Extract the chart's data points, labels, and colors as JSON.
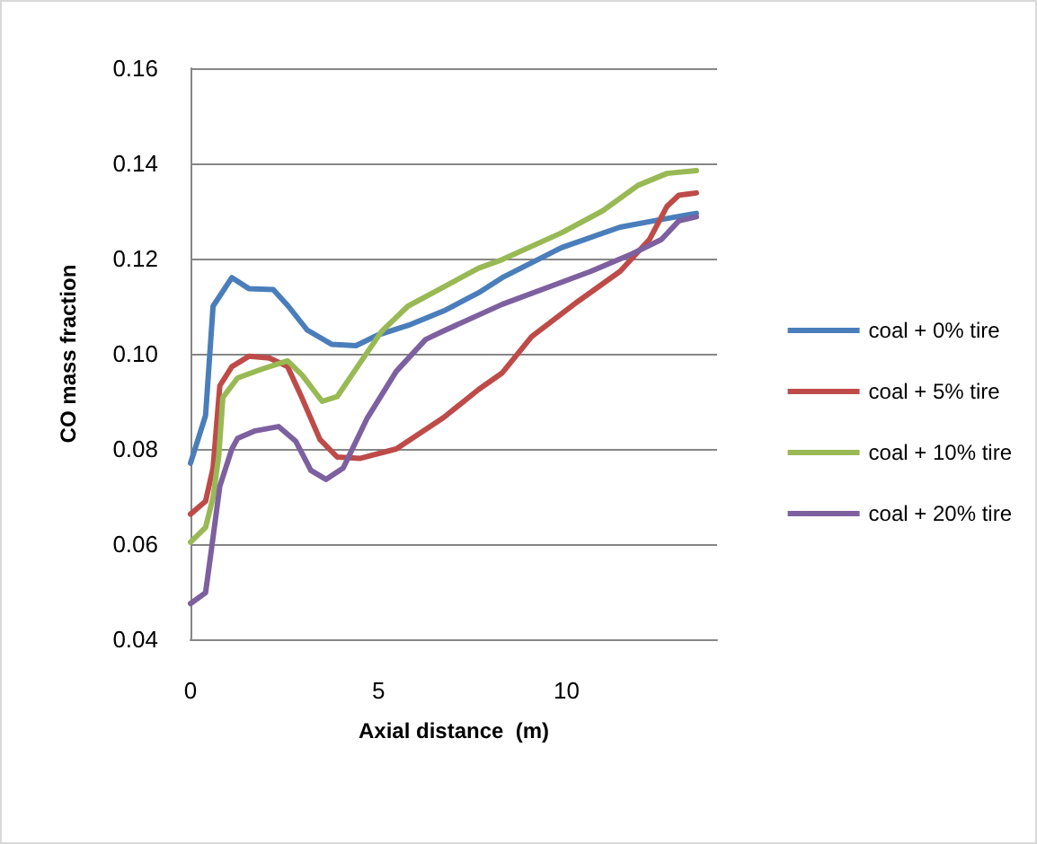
{
  "chart_data": {
    "type": "line",
    "xlabel": "Axial distance  (m)",
    "ylabel": "CO mass fraction",
    "xlim": [
      0,
      14
    ],
    "xticks": [
      0,
      5,
      10
    ],
    "ylim": [
      0.04,
      0.16
    ],
    "yticks": [
      0.04,
      0.06,
      0.08,
      {
        "value": 0.1,
        "label": "0.10"
      },
      0.12,
      0.14,
      0.16
    ],
    "grid": "y",
    "legend": "right",
    "marker": "none",
    "line_style": "solid",
    "series": [
      {
        "name": "coal + 0% tire",
        "color": "#4a7ebb",
        "x": [
          0,
          0.4,
          0.6,
          1.1,
          1.55,
          2.2,
          2.6,
          3.1,
          3.75,
          4.4,
          5,
          5.8,
          6.73,
          7.7,
          8.29,
          9.86,
          11.42,
          12.36,
          13.45
        ],
        "values": [
          0.077,
          0.087,
          0.11,
          0.116,
          0.1137,
          0.1135,
          0.11,
          0.105,
          0.102,
          0.1017,
          0.104,
          0.106,
          0.109,
          0.113,
          0.116,
          0.1223,
          0.1266,
          0.128,
          0.1295
        ]
      },
      {
        "name": "coal + 5% tire",
        "color": "#be4b48",
        "x": [
          0,
          0.4,
          0.6,
          0.78,
          1.1,
          1.56,
          2.1,
          2.58,
          2.97,
          3.44,
          3.9,
          4.5,
          5.47,
          6.73,
          7.66,
          8.29,
          9.07,
          10.3,
          11.42,
          12.2,
          12.67,
          12.98,
          13.45
        ],
        "values": [
          0.0663,
          0.069,
          0.076,
          0.0933,
          0.0973,
          0.0995,
          0.0991,
          0.0973,
          0.0906,
          0.082,
          0.0783,
          0.078,
          0.08,
          0.0866,
          0.0925,
          0.096,
          0.1036,
          0.111,
          0.1173,
          0.124,
          0.131,
          0.1333,
          0.1338
        ]
      },
      {
        "name": "coal + 10% tire",
        "color": "#98b954",
        "x": [
          0,
          0.4,
          0.6,
          0.75,
          0.86,
          1.25,
          1.87,
          2.58,
          2.97,
          3.5,
          3.9,
          4.5,
          5.08,
          5.78,
          6.72,
          7.66,
          8.29,
          9.86,
          10.95,
          11.9,
          12.67,
          13.45
        ],
        "values": [
          0.0604,
          0.0635,
          0.0698,
          0.0785,
          0.0908,
          0.0949,
          0.0967,
          0.0985,
          0.0955,
          0.09,
          0.091,
          0.098,
          0.1047,
          0.11,
          0.114,
          0.118,
          0.1198,
          0.1254,
          0.13,
          0.1354,
          0.1379,
          0.1385
        ]
      },
      {
        "name": "coal + 20% tire",
        "color": "#7d60a0",
        "x": [
          0,
          0.4,
          0.55,
          0.78,
          1.1,
          1.25,
          1.72,
          2.34,
          2.8,
          3.2,
          3.6,
          4.06,
          4.7,
          5.47,
          6.25,
          6.73,
          8.29,
          9.55,
          10.64,
          11.74,
          12.52,
          12.98,
          13.45
        ],
        "values": [
          0.0475,
          0.0498,
          0.0585,
          0.0722,
          0.08,
          0.0822,
          0.0838,
          0.0847,
          0.0816,
          0.0755,
          0.0736,
          0.076,
          0.0865,
          0.0963,
          0.103,
          0.1048,
          0.1104,
          0.1141,
          0.1173,
          0.121,
          0.124,
          0.1279,
          0.1288
        ]
      }
    ]
  }
}
